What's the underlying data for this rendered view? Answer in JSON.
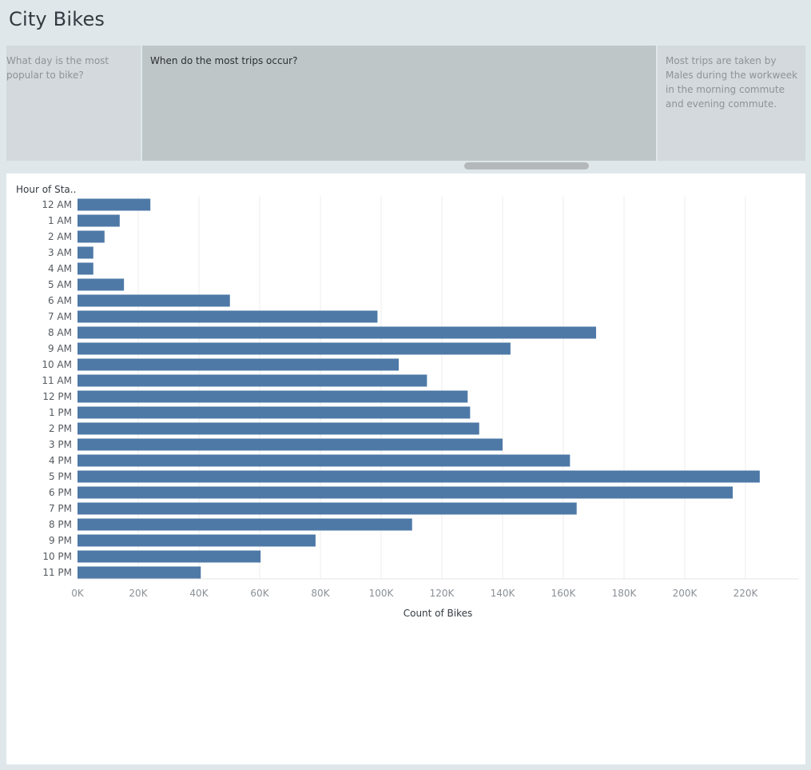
{
  "dashboard_title": "City Bikes",
  "story_points": [
    {
      "text": "What day is the most popular to bike?",
      "active": false
    },
    {
      "text": "When do the most trips occur?",
      "active": true
    },
    {
      "text": "Most trips are taken by Males during the workweek in the morning commute and evening commute.",
      "active": false
    }
  ],
  "chart_data": {
    "type": "bar",
    "orientation": "horizontal",
    "ylabel": "Hour of Sta..",
    "xlabel": "Count of Bikes",
    "categories": [
      "12 AM",
      "1 AM",
      "2 AM",
      "3 AM",
      "4 AM",
      "5 AM",
      "6 AM",
      "7 AM",
      "8 AM",
      "9 AM",
      "10 AM",
      "11 AM",
      "12 PM",
      "1 PM",
      "2 PM",
      "3 PM",
      "4 PM",
      "5 PM",
      "6 PM",
      "7 PM",
      "8 PM",
      "9 PM",
      "10 PM",
      "11 PM"
    ],
    "values": [
      24000,
      13900,
      8900,
      5200,
      5200,
      15300,
      50200,
      98800,
      170800,
      142600,
      105800,
      115100,
      128500,
      129300,
      132300,
      140000,
      162200,
      224700,
      215800,
      164400,
      110200,
      78400,
      60300,
      40600
    ],
    "xlim": [
      0,
      235000
    ],
    "x_ticks": [
      0,
      20000,
      40000,
      60000,
      80000,
      100000,
      120000,
      140000,
      160000,
      180000,
      200000,
      220000
    ],
    "x_tick_labels": [
      "0K",
      "20K",
      "40K",
      "60K",
      "80K",
      "100K",
      "120K",
      "140K",
      "160K",
      "180K",
      "200K",
      "220K"
    ],
    "grid": true,
    "bar_color": "#4e79a7"
  }
}
